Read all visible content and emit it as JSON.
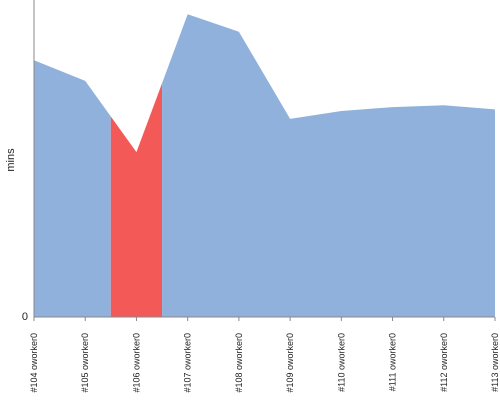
{
  "chart_data": {
    "type": "area",
    "categories": [
      "#104 oworker0",
      "#105 oworker0",
      "#106 oworker0",
      "#107 oworker0",
      "#108 oworker0",
      "#109 oworker0",
      "#110 oworker0",
      "#111 oworker0",
      "#112 oworker0",
      "#113 oworker0"
    ],
    "values": [
      0.81,
      0.745,
      0.52,
      0.955,
      0.9,
      0.625,
      0.65,
      0.662,
      0.668,
      0.655
    ],
    "ylim": [
      0,
      1
    ],
    "ylabel": "mins",
    "ytick_labels": [
      "0"
    ],
    "highlight_index": 2,
    "grid": false,
    "legend": "none",
    "colors": {
      "area": "#8fb1db",
      "highlight": "#f35a57",
      "axis": "#888888"
    }
  }
}
